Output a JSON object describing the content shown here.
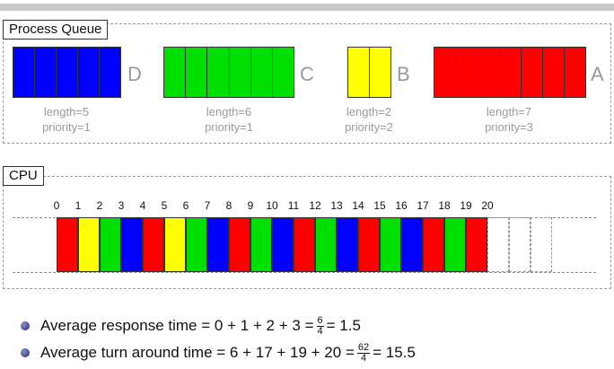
{
  "process_queue": {
    "title": "Process Queue",
    "processes": [
      {
        "name": "D",
        "length": 5,
        "priority": 1,
        "color": "#0000ff",
        "length_label": "length=5",
        "priority_label": "priority=1"
      },
      {
        "name": "C",
        "length": 6,
        "priority": 1,
        "color": "#00e000",
        "length_label": "length=6",
        "priority_label": "priority=1"
      },
      {
        "name": "B",
        "length": 2,
        "priority": 2,
        "color": "#ffff00",
        "length_label": "length=2",
        "priority_label": "priority=2"
      },
      {
        "name": "A",
        "length": 7,
        "priority": 3,
        "color": "#ff0000",
        "length_label": "length=7",
        "priority_label": "priority=3"
      }
    ]
  },
  "cpu": {
    "title": "CPU",
    "ticks": [
      "0",
      "1",
      "2",
      "3",
      "4",
      "5",
      "6",
      "7",
      "8",
      "9",
      "10",
      "11",
      "12",
      "13",
      "14",
      "15",
      "16",
      "17",
      "18",
      "19",
      "20"
    ],
    "schedule": [
      "A",
      "B",
      "C",
      "D",
      "A",
      "B",
      "C",
      "D",
      "A",
      "C",
      "D",
      "A",
      "C",
      "D",
      "A",
      "C",
      "D",
      "A",
      "C",
      "A"
    ],
    "empty_slots": 3,
    "colors": {
      "A": "#ff0000",
      "B": "#ffff00",
      "C": "#00e000",
      "D": "#0000ff"
    }
  },
  "bullets": {
    "response": {
      "label": "Average response time",
      "expr": "= 0 + 1 + 2 + 3 =",
      "num": "6",
      "den": "4",
      "result": "= 1.5"
    },
    "turnaround": {
      "label": "Average turn around time",
      "expr": "= 6 + 17 + 19 + 20 =",
      "num": "62",
      "den": "4",
      "result": "= 15.5"
    }
  }
}
